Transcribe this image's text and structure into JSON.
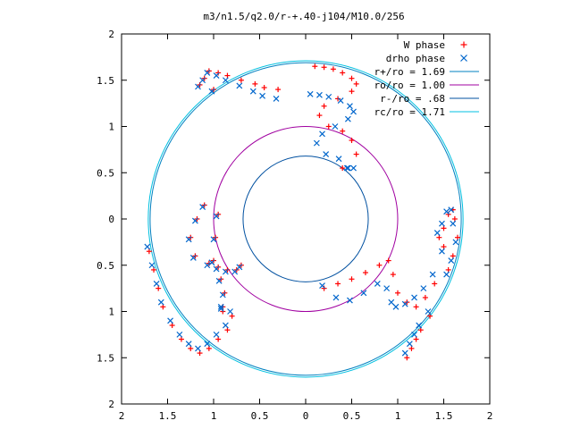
{
  "chart_data": {
    "type": "scatter",
    "title": "m3/n1.5/q2.0/r-+.40-j104/M10.0/256",
    "xlabel": "",
    "ylabel": "",
    "xlim": [
      -2,
      2
    ],
    "ylim": [
      -2,
      2
    ],
    "x_tick_values": [
      -2,
      -1.5,
      -1,
      -0.5,
      0,
      0.5,
      1,
      1.5,
      2
    ],
    "x_tick_labels": [
      "2",
      "1.5",
      "1",
      "0.5",
      "0",
      "0.5",
      "1",
      "1.5",
      "2"
    ],
    "y_tick_values": [
      2,
      1.5,
      1,
      0.5,
      0,
      -0.5,
      -1,
      -1.5,
      -2
    ],
    "y_tick_labels": [
      "2",
      "1.5",
      "1",
      "0.5",
      "0",
      "0.5",
      "1",
      "1.5",
      "2"
    ],
    "grid": false,
    "legend_position": "top-right",
    "series": [
      {
        "name": "W phase",
        "marker": "plus",
        "color": "#ff0000",
        "x": [
          0.1,
          0.2,
          0.3,
          0.4,
          0.5,
          0.55,
          0.5,
          0.35,
          0.2,
          0.15,
          0.25,
          0.4,
          0.5,
          0.55,
          0.4,
          -0.3,
          -0.45,
          -0.55,
          -0.7,
          -0.85,
          -0.95,
          -1.05,
          -1.1,
          -1.15,
          -1.0,
          -0.9,
          -0.88,
          -0.92,
          -1.0,
          -0.98,
          -0.95,
          -1.1,
          -1.18,
          -1.25,
          -1.2,
          -1.05,
          -0.95,
          -0.85,
          -0.75,
          -0.7,
          -1.7,
          -1.65,
          -1.6,
          -1.55,
          -1.45,
          -1.35,
          -1.25,
          -1.15,
          -1.05,
          -0.95,
          -0.85,
          -0.8,
          -0.9,
          0.2,
          0.35,
          0.5,
          0.65,
          0.8,
          0.9,
          0.95,
          1.0,
          1.1,
          1.2,
          1.3,
          1.4,
          1.35,
          1.25,
          1.2,
          1.15,
          1.1,
          1.45,
          1.5,
          1.55,
          1.6,
          1.62,
          1.65,
          1.6,
          1.55,
          1.5
        ],
        "y": [
          1.65,
          1.64,
          1.62,
          1.58,
          1.52,
          1.46,
          1.38,
          1.3,
          1.22,
          1.12,
          1.0,
          0.95,
          0.85,
          0.7,
          0.55,
          1.4,
          1.42,
          1.46,
          1.5,
          1.55,
          1.58,
          1.6,
          1.52,
          1.45,
          1.4,
          -0.95,
          -0.8,
          -0.65,
          -0.45,
          -0.2,
          0.05,
          0.15,
          0.0,
          -0.2,
          -0.4,
          -0.48,
          -0.52,
          -0.55,
          -0.55,
          -0.5,
          -0.35,
          -0.55,
          -0.75,
          -0.95,
          -1.15,
          -1.3,
          -1.4,
          -1.45,
          -1.4,
          -1.3,
          -1.2,
          -1.05,
          -1.0,
          -0.75,
          -0.7,
          -0.65,
          -0.58,
          -0.5,
          -0.45,
          -0.6,
          -0.8,
          -0.9,
          -0.95,
          -0.85,
          -0.7,
          -1.05,
          -1.2,
          -1.3,
          -1.4,
          -1.5,
          -0.2,
          -0.1,
          0.05,
          0.1,
          0.0,
          -0.2,
          -0.4,
          -0.55,
          -0.3
        ]
      },
      {
        "name": "drho phase",
        "marker": "cross",
        "color": "#0066cc",
        "x": [
          0.05,
          0.15,
          0.25,
          0.38,
          0.48,
          0.52,
          0.46,
          0.32,
          0.18,
          0.12,
          0.22,
          0.36,
          0.46,
          0.52,
          0.45,
          -0.32,
          -0.47,
          -0.57,
          -0.72,
          -0.87,
          -0.97,
          -1.07,
          -1.12,
          -1.17,
          -1.02,
          -0.92,
          -0.9,
          -0.94,
          -1.02,
          -1.0,
          -0.97,
          -1.12,
          -1.2,
          -1.27,
          -1.22,
          -1.07,
          -0.97,
          -0.87,
          -0.77,
          -0.72,
          -1.72,
          -1.67,
          -1.62,
          -1.57,
          -1.47,
          -1.37,
          -1.27,
          -1.17,
          -1.07,
          -0.97,
          -0.87,
          -0.82,
          -0.92,
          0.18,
          0.33,
          0.48,
          0.63,
          0.78,
          0.88,
          0.93,
          0.98,
          1.08,
          1.18,
          1.28,
          1.38,
          1.33,
          1.23,
          1.18,
          1.13,
          1.08,
          1.43,
          1.48,
          1.53,
          1.58,
          1.6,
          1.63,
          1.58,
          1.53,
          1.48
        ],
        "y": [
          1.35,
          1.34,
          1.32,
          1.28,
          1.22,
          1.16,
          1.08,
          1.0,
          0.92,
          0.82,
          0.7,
          0.65,
          0.55,
          0.55,
          0.55,
          1.3,
          1.33,
          1.38,
          1.44,
          1.5,
          1.55,
          1.58,
          1.5,
          1.43,
          1.38,
          -0.97,
          -0.82,
          -0.67,
          -0.47,
          -0.22,
          0.03,
          0.13,
          -0.02,
          -0.22,
          -0.42,
          -0.5,
          -0.54,
          -0.57,
          -0.57,
          -0.52,
          -0.3,
          -0.5,
          -0.7,
          -0.9,
          -1.1,
          -1.25,
          -1.35,
          -1.4,
          -1.35,
          -1.25,
          -1.15,
          -1.0,
          -0.95,
          -0.72,
          -0.85,
          -0.88,
          -0.8,
          -0.7,
          -0.75,
          -0.9,
          -0.95,
          -0.92,
          -0.85,
          -0.75,
          -0.6,
          -1.0,
          -1.15,
          -1.25,
          -1.35,
          -1.45,
          -0.15,
          -0.05,
          0.08,
          0.1,
          -0.05,
          -0.25,
          -0.45,
          -0.6,
          -0.35
        ]
      },
      {
        "name": "r+/ro = 1.69",
        "type": "circle",
        "radius": 1.69,
        "color": "#0080c0"
      },
      {
        "name": "ro/ro = 1.00",
        "type": "circle",
        "radius": 1.0,
        "color": "#a000a0"
      },
      {
        "name": "r-/ro = .68",
        "type": "circle",
        "radius": 0.68,
        "color": "#0050a0"
      },
      {
        "name": "rc/ro = 1.71",
        "type": "circle",
        "radius": 1.71,
        "color": "#00c0e0"
      }
    ]
  }
}
